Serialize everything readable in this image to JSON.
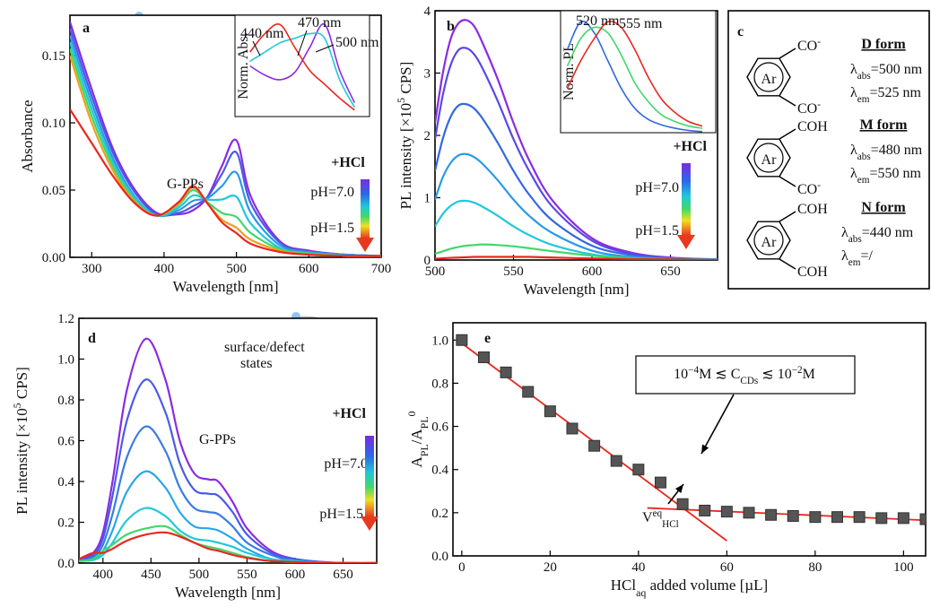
{
  "chart_data": [
    {
      "type": "line",
      "panel_label": "a",
      "xlabel": "Wavelength [nm]",
      "ylabel": "Absorbance",
      "xlim": [
        270,
        700
      ],
      "ylim": [
        0,
        0.18
      ],
      "xticks": [
        300,
        400,
        500,
        600,
        700
      ],
      "yticks": [
        {
          "value": 0,
          "label": "0.00"
        },
        {
          "value": 0.05,
          "label": "0.05"
        },
        {
          "value": 0.1,
          "label": "0.10"
        },
        {
          "value": 0.15,
          "label": "0.15"
        }
      ],
      "x": [
        270,
        300,
        330,
        360,
        390,
        420,
        440,
        460,
        480,
        500,
        520,
        560,
        600,
        650,
        700
      ],
      "series": [
        {
          "color": "#8b2be2",
          "values": [
            0.175,
            0.125,
            0.08,
            0.05,
            0.033,
            0.032,
            0.035,
            0.045,
            0.068,
            0.087,
            0.045,
            0.012,
            0.005,
            0.002,
            0.001
          ]
        },
        {
          "color": "#4a5ae6",
          "values": [
            0.17,
            0.12,
            0.077,
            0.048,
            0.032,
            0.033,
            0.038,
            0.045,
            0.062,
            0.078,
            0.04,
            0.011,
            0.004,
            0.002,
            0.001
          ]
        },
        {
          "color": "#2a9ae6",
          "values": [
            0.165,
            0.115,
            0.073,
            0.045,
            0.031,
            0.035,
            0.042,
            0.044,
            0.053,
            0.063,
            0.033,
            0.009,
            0.004,
            0.002,
            0.001
          ]
        },
        {
          "color": "#22c8d8",
          "values": [
            0.16,
            0.11,
            0.07,
            0.044,
            0.031,
            0.037,
            0.046,
            0.043,
            0.043,
            0.045,
            0.025,
            0.007,
            0.003,
            0.001,
            0.001
          ]
        },
        {
          "color": "#3fd86a",
          "values": [
            0.155,
            0.105,
            0.067,
            0.042,
            0.031,
            0.039,
            0.05,
            0.041,
            0.033,
            0.03,
            0.018,
            0.006,
            0.003,
            0.001,
            0.001
          ]
        },
        {
          "color": "#f0a020",
          "values": [
            0.15,
            0.1,
            0.064,
            0.041,
            0.031,
            0.04,
            0.052,
            0.04,
            0.028,
            0.022,
            0.013,
            0.005,
            0.002,
            0.001,
            0.001
          ]
        },
        {
          "color": "#e8281e",
          "values": [
            0.11,
            0.085,
            0.06,
            0.04,
            0.031,
            0.041,
            0.053,
            0.04,
            0.026,
            0.018,
            0.01,
            0.004,
            0.002,
            0.001,
            0.001
          ]
        }
      ],
      "annotations": [
        "G-PPs",
        "+HCl",
        "pH=7.0",
        "pH=1.5"
      ]
    },
    {
      "type": "line",
      "ylabel": "Norm. Abs.",
      "xlim": [
        380,
        560
      ],
      "ylim": [
        0,
        1.1
      ],
      "x": [
        400,
        420,
        440,
        460,
        480,
        500,
        520,
        540
      ],
      "series": [
        {
          "color": "#8b2be2",
          "values": [
            0.55,
            0.45,
            0.4,
            0.48,
            0.75,
            1.0,
            0.5,
            0.15
          ]
        },
        {
          "color": "#22c8d8",
          "values": [
            0.6,
            0.7,
            0.8,
            0.85,
            0.9,
            0.85,
            0.4,
            0.1
          ]
        },
        {
          "color": "#e8281e",
          "values": [
            0.7,
            0.9,
            1.0,
            0.75,
            0.5,
            0.35,
            0.2,
            0.07
          ]
        }
      ],
      "annotations": [
        "440 nm",
        "470 nm",
        "500 nm"
      ]
    },
    {
      "type": "line",
      "panel_label": "b",
      "xlabel": "Wavelength [nm]",
      "ylabel": [
        {
          "t": "PL intensity [×10"
        },
        {
          "t": "5",
          "s": "sup"
        },
        {
          "t": " CPS]"
        }
      ],
      "xlim": [
        500,
        680
      ],
      "ylim": [
        0,
        4
      ],
      "xticks": [
        500,
        550,
        600,
        650
      ],
      "yticks": [
        0,
        1,
        2,
        3,
        4
      ],
      "x": [
        500,
        505,
        510,
        515,
        520,
        525,
        530,
        540,
        550,
        560,
        575,
        600,
        625,
        650,
        680
      ],
      "series": [
        {
          "color": "#8b2be2",
          "values": [
            2.2,
            3.0,
            3.55,
            3.8,
            3.85,
            3.75,
            3.5,
            2.9,
            2.2,
            1.6,
            0.95,
            0.35,
            0.12,
            0.04,
            0.01
          ]
        },
        {
          "color": "#5a48e6",
          "values": [
            1.94,
            2.65,
            3.13,
            3.37,
            3.4,
            3.3,
            3.09,
            2.55,
            1.94,
            1.43,
            0.85,
            0.31,
            0.1,
            0.03,
            0.01
          ]
        },
        {
          "color": "#3468e0",
          "values": [
            1.43,
            1.95,
            2.3,
            2.48,
            2.5,
            2.43,
            2.28,
            1.88,
            1.43,
            1.05,
            0.63,
            0.23,
            0.08,
            0.03,
            0.01
          ]
        },
        {
          "color": "#2a9ae6",
          "values": [
            0.97,
            1.33,
            1.56,
            1.68,
            1.7,
            1.65,
            1.55,
            1.28,
            0.97,
            0.71,
            0.43,
            0.15,
            0.05,
            0.02,
            0.01
          ]
        },
        {
          "color": "#22c8d8",
          "values": [
            0.54,
            0.74,
            0.87,
            0.94,
            0.95,
            0.92,
            0.86,
            0.71,
            0.54,
            0.4,
            0.24,
            0.09,
            0.03,
            0.01,
            0
          ]
        },
        {
          "color": "#3fd86a",
          "values": [
            0.1,
            0.14,
            0.18,
            0.21,
            0.23,
            0.24,
            0.25,
            0.24,
            0.22,
            0.19,
            0.14,
            0.07,
            0.03,
            0.01,
            0
          ]
        },
        {
          "color": "#e8281e",
          "values": [
            0.02,
            0.03,
            0.035,
            0.04,
            0.045,
            0.05,
            0.05,
            0.05,
            0.05,
            0.05,
            0.04,
            0.025,
            0.015,
            0.01,
            0
          ]
        }
      ],
      "annotations": [
        "+HCl",
        "pH=7.0",
        "pH=1.5"
      ]
    },
    {
      "type": "line",
      "ylabel": "Norm. PL",
      "xlim": [
        490,
        720
      ],
      "ylim": [
        0,
        1.1
      ],
      "x": [
        500,
        520,
        540,
        560,
        580,
        600,
        620,
        640,
        660,
        680,
        700
      ],
      "series": [
        {
          "color": "#3468e0",
          "values": [
            0.75,
            1.0,
            0.9,
            0.65,
            0.4,
            0.22,
            0.12,
            0.07,
            0.04,
            0.02,
            0.01
          ]
        },
        {
          "color": "#3fd86a",
          "values": [
            0.6,
            0.85,
            0.95,
            0.9,
            0.7,
            0.45,
            0.28,
            0.16,
            0.1,
            0.06,
            0.04
          ]
        },
        {
          "color": "#e8281e",
          "values": [
            0.4,
            0.65,
            0.85,
            1.0,
            0.95,
            0.75,
            0.5,
            0.3,
            0.18,
            0.1,
            0.06
          ]
        }
      ],
      "annotations": [
        "520 nm",
        "555 nm"
      ]
    },
    {
      "type": "line",
      "panel_label": "d",
      "xlabel": "Wavelength [nm]",
      "ylabel": [
        {
          "t": "PL intensity [×10"
        },
        {
          "t": "5",
          "s": "sup"
        },
        {
          "t": " CPS]"
        }
      ],
      "xlim": [
        375,
        685
      ],
      "ylim": [
        0,
        1.2
      ],
      "xticks": [
        400,
        450,
        500,
        550,
        600,
        650
      ],
      "yticks": [
        {
          "value": 0,
          "label": "0.0"
        },
        {
          "value": 0.2,
          "label": "0.2"
        },
        {
          "value": 0.4,
          "label": "0.4"
        },
        {
          "value": 0.6,
          "label": "0.6"
        },
        {
          "value": 0.8,
          "label": "0.8"
        },
        {
          "value": 1,
          "label": "1.0"
        },
        {
          "value": 1.2,
          "label": "1.2"
        }
      ],
      "x": [
        375,
        390,
        400,
        410,
        425,
        445,
        465,
        480,
        495,
        510,
        520,
        535,
        550,
        575,
        600,
        630,
        660,
        685
      ],
      "series": [
        {
          "color": "#8b2be2",
          "values": [
            0.01,
            0.05,
            0.15,
            0.4,
            0.85,
            1.1,
            0.9,
            0.6,
            0.44,
            0.41,
            0.4,
            0.3,
            0.17,
            0.06,
            0.02,
            0.005,
            0,
            0
          ]
        },
        {
          "color": "#4a5ae6",
          "values": [
            0.01,
            0.04,
            0.12,
            0.33,
            0.7,
            0.9,
            0.74,
            0.49,
            0.36,
            0.34,
            0.33,
            0.25,
            0.14,
            0.05,
            0.02,
            0.004,
            0,
            0
          ]
        },
        {
          "color": "#3a7ae4",
          "values": [
            0.01,
            0.03,
            0.09,
            0.24,
            0.52,
            0.67,
            0.55,
            0.37,
            0.27,
            0.25,
            0.24,
            0.18,
            0.1,
            0.04,
            0.01,
            0.003,
            0,
            0
          ]
        },
        {
          "color": "#2aa6e6",
          "values": [
            0.01,
            0.02,
            0.06,
            0.16,
            0.35,
            0.45,
            0.37,
            0.25,
            0.18,
            0.17,
            0.16,
            0.12,
            0.07,
            0.02,
            0.01,
            0.002,
            0,
            0
          ]
        },
        {
          "color": "#22c8d8",
          "values": [
            0.01,
            0.015,
            0.04,
            0.1,
            0.21,
            0.27,
            0.23,
            0.16,
            0.12,
            0.11,
            0.1,
            0.08,
            0.05,
            0.02,
            0.01,
            0,
            0,
            0
          ]
        },
        {
          "color": "#3fd86a",
          "values": [
            0.01,
            0.02,
            0.06,
            0.09,
            0.14,
            0.17,
            0.18,
            0.14,
            0.1,
            0.08,
            0.07,
            0.05,
            0.03,
            0.01,
            0.005,
            0,
            0,
            0
          ]
        },
        {
          "color": "#e8281e",
          "values": [
            0.02,
            0.05,
            0.05,
            0.07,
            0.11,
            0.14,
            0.15,
            0.13,
            0.1,
            0.07,
            0.06,
            0.04,
            0.025,
            0.01,
            0.005,
            0,
            0,
            0
          ]
        }
      ],
      "annotations": [
        "surface/defect",
        "states",
        "G-PPs",
        "+HCl",
        "pH=7.0",
        "pH=1.5"
      ]
    },
    {
      "type": "scatter",
      "panel_label": "e",
      "xlabel": [
        {
          "t": "HCl"
        },
        {
          "t": "aq",
          "s": "sub"
        },
        {
          "t": " added volume [µL]"
        }
      ],
      "ylabel": [
        {
          "t": "A"
        },
        {
          "t": "PL",
          "s": "sub"
        },
        {
          "t": "/A"
        },
        {
          "t": "PL",
          "s": "sub"
        },
        {
          "t": "0",
          "s": "sup"
        }
      ],
      "xlim": [
        -2,
        105
      ],
      "ylim": [
        0,
        1.08
      ],
      "xticks": [
        0,
        20,
        40,
        60,
        80,
        100
      ],
      "yticks": [
        {
          "value": 0,
          "label": "0.0"
        },
        {
          "value": 0.2,
          "label": "0.2"
        },
        {
          "value": 0.4,
          "label": "0.4"
        },
        {
          "value": 0.6,
          "label": "0.6"
        },
        {
          "value": 0.8,
          "label": "0.8"
        },
        {
          "value": 1,
          "label": "1.0"
        }
      ],
      "x": [
        0,
        5,
        10,
        15,
        20,
        25,
        30,
        35,
        40,
        45,
        50,
        55,
        60,
        65,
        70,
        75,
        80,
        85,
        90,
        95,
        100,
        105
      ],
      "values": [
        1.0,
        0.92,
        0.85,
        0.76,
        0.67,
        0.59,
        0.51,
        0.44,
        0.4,
        0.34,
        0.24,
        0.21,
        0.205,
        0.2,
        0.19,
        0.185,
        0.18,
        0.18,
        0.18,
        0.175,
        0.175,
        0.17
      ],
      "color": "#555555",
      "fits": [
        {
          "color": "#e8281e",
          "x": [
            0,
            60
          ],
          "values": [
            0.985,
            0.07
          ]
        },
        {
          "color": "#e8281e",
          "x": [
            42,
            105
          ],
          "values": [
            0.222,
            0.165
          ]
        }
      ],
      "annotations": [
        [
          {
            "t": "10"
          },
          {
            "t": "−4",
            "s": "sup"
          },
          {
            "t": "M ≲ C"
          },
          {
            "t": "CDs",
            "s": "sub"
          },
          {
            "t": " ≲ 10"
          },
          {
            "t": "−2",
            "s": "sup"
          },
          {
            "t": "M"
          }
        ],
        [
          {
            "t": "V"
          },
          {
            "t": "eq",
            "s": "sup"
          },
          {
            "t": "HCl",
            "s": "sub"
          }
        ]
      ]
    }
  ],
  "scheme": {
    "panel_label": "c",
    "ring": "Ar",
    "forms": [
      {
        "name": "D form",
        "groups": [
          [
            {
              "t": "CO"
            },
            {
              "t": "-",
              "s": "sup"
            }
          ],
          [
            {
              "t": "CO"
            },
            {
              "t": "-",
              "s": "sup"
            }
          ]
        ],
        "props": [
          [
            {
              "t": "λ"
            },
            {
              "t": "abs",
              "s": "sub"
            },
            {
              "t": "=500 nm"
            }
          ],
          [
            {
              "t": "λ"
            },
            {
              "t": "em",
              "s": "sub"
            },
            {
              "t": "=525 nm"
            }
          ]
        ]
      },
      {
        "name": "M form",
        "groups": [
          [
            {
              "t": "COH"
            }
          ],
          [
            {
              "t": "CO"
            },
            {
              "t": "-",
              "s": "sup"
            }
          ]
        ],
        "props": [
          [
            {
              "t": "λ"
            },
            {
              "t": "abs",
              "s": "sub"
            },
            {
              "t": "=480 nm"
            }
          ],
          [
            {
              "t": "λ"
            },
            {
              "t": "em",
              "s": "sub"
            },
            {
              "t": "=550 nm"
            }
          ]
        ]
      },
      {
        "name": "N form",
        "groups": [
          [
            {
              "t": "COH"
            }
          ],
          [
            {
              "t": "COH"
            }
          ]
        ],
        "props": [
          [
            {
              "t": "λ"
            },
            {
              "t": "abs",
              "s": "sub"
            },
            {
              "t": "=440 nm"
            }
          ],
          [
            {
              "t": "λ"
            },
            {
              "t": "em",
              "s": "sub"
            },
            {
              "t": "=/"
            }
          ]
        ]
      }
    ]
  }
}
